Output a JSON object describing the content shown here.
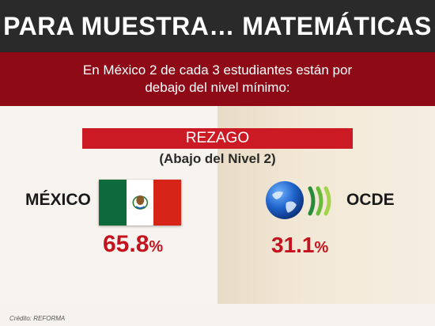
{
  "header": {
    "title": "PARA MUESTRA… MATEMÁTICAS"
  },
  "intro": {
    "line1": "En México 2 de cada 3 estudiantes están por",
    "line2": "debajo del nivel mínimo:"
  },
  "rezago": {
    "label": "REZAGO",
    "sublabel": "(Abajo del Nivel 2)"
  },
  "countries": [
    {
      "name": "MÉXICO",
      "value": "65.8",
      "unit": "%",
      "icon": "mexico-flag-icon"
    },
    {
      "name": "OCDE",
      "value": "31.1",
      "unit": "%",
      "icon": "oecd-logo-icon"
    }
  ],
  "credit": "Crédito: REFORMA",
  "colors": {
    "header_bg": "#2a2a2a",
    "intro_bg": "#8e0a16",
    "rezago_bg": "#cc1a25",
    "value_text": "#c4121e"
  }
}
